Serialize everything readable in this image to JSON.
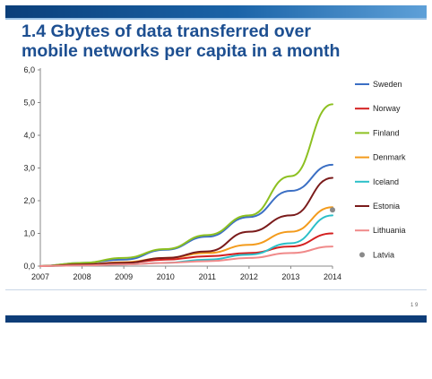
{
  "slide": {
    "title_line1": "1.4 Gbytes of data transferred over",
    "title_line2": "mobile networks per capita  in a month",
    "page_number": "1 9"
  },
  "colors": {
    "title": "#1d4f91",
    "bar": "#0e3d78",
    "axis": "#888888"
  },
  "chart_data": {
    "type": "line",
    "title": "",
    "xlabel": "",
    "ylabel": "",
    "x": [
      "2007",
      "2008",
      "2009",
      "2010",
      "2011",
      "2012",
      "2013",
      "2014"
    ],
    "ylim": [
      0,
      6
    ],
    "yticks": [
      "0,0",
      "1,0",
      "2,0",
      "3,0",
      "4,0",
      "5,0",
      "6,0"
    ],
    "grid": false,
    "legend_position": "right",
    "series": [
      {
        "name": "Sweden",
        "color": "#3b6fc4",
        "values": [
          0.0,
          0.1,
          0.2,
          0.5,
          0.9,
          1.5,
          2.3,
          3.1
        ]
      },
      {
        "name": "Norway",
        "color": "#d42020",
        "values": [
          0.0,
          0.05,
          0.1,
          0.2,
          0.3,
          0.4,
          0.6,
          1.0
        ]
      },
      {
        "name": "Finland",
        "color": "#8dc021",
        "values": [
          0.0,
          0.1,
          0.25,
          0.52,
          0.95,
          1.55,
          2.75,
          4.95
        ]
      },
      {
        "name": "Denmark",
        "color": "#f39b1c",
        "values": [
          0.0,
          0.05,
          0.12,
          0.25,
          0.4,
          0.65,
          1.05,
          1.8
        ]
      },
      {
        "name": "Iceland",
        "color": "#2bbfc8",
        "values": [
          0.0,
          0.02,
          0.05,
          0.1,
          0.2,
          0.35,
          0.7,
          1.55
        ]
      },
      {
        "name": "Estonia",
        "color": "#7a1b1b",
        "values": [
          0.0,
          0.05,
          0.1,
          0.25,
          0.45,
          1.05,
          1.55,
          2.7
        ]
      },
      {
        "name": "Lithuania",
        "color": "#f08a8a",
        "values": [
          0.0,
          0.02,
          0.05,
          0.1,
          0.15,
          0.25,
          0.4,
          0.6
        ]
      },
      {
        "name": "Latvia",
        "color": "#8a8a8a",
        "marker_only": true,
        "values": [
          null,
          null,
          null,
          null,
          null,
          null,
          null,
          1.72
        ]
      }
    ]
  }
}
